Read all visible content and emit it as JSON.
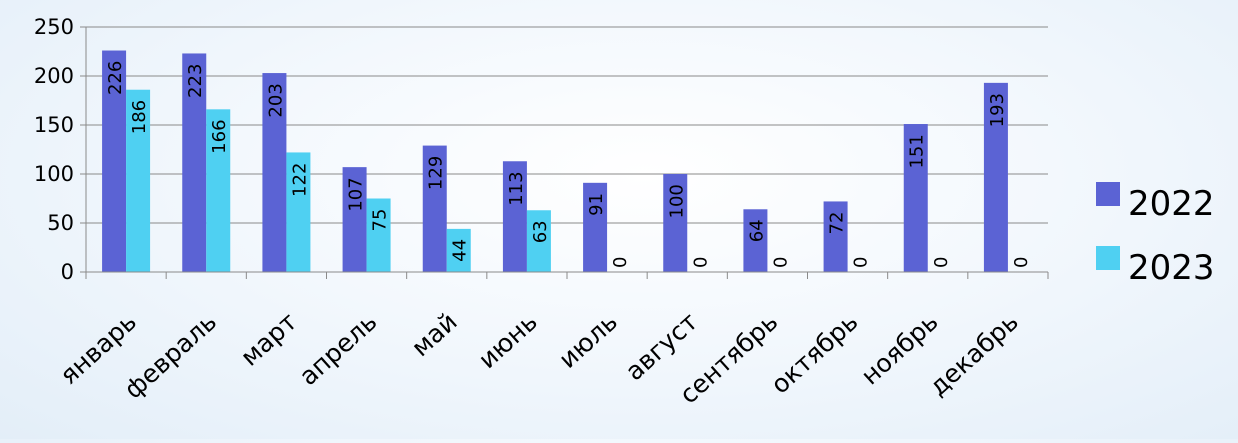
{
  "chart_data": {
    "type": "bar",
    "categories": [
      "январь",
      "февраль",
      "март",
      "апрель",
      "май",
      "июнь",
      "июль",
      "август",
      "сентябрь",
      "октябрь",
      "ноябрь",
      "декабрь"
    ],
    "series": [
      {
        "name": "2022",
        "color": "#5b63d4",
        "values": [
          226,
          223,
          203,
          107,
          129,
          113,
          91,
          100,
          64,
          72,
          151,
          193
        ]
      },
      {
        "name": "2023",
        "color": "#4fd0f2",
        "values": [
          186,
          166,
          122,
          75,
          44,
          63,
          0,
          0,
          0,
          0,
          0,
          0
        ]
      }
    ],
    "y_ticks": [
      "0",
      "50",
      "100",
      "150",
      "200",
      "250"
    ],
    "ylim": [
      0,
      250
    ],
    "grid": true,
    "legend_position": "right",
    "data_labels": true
  }
}
